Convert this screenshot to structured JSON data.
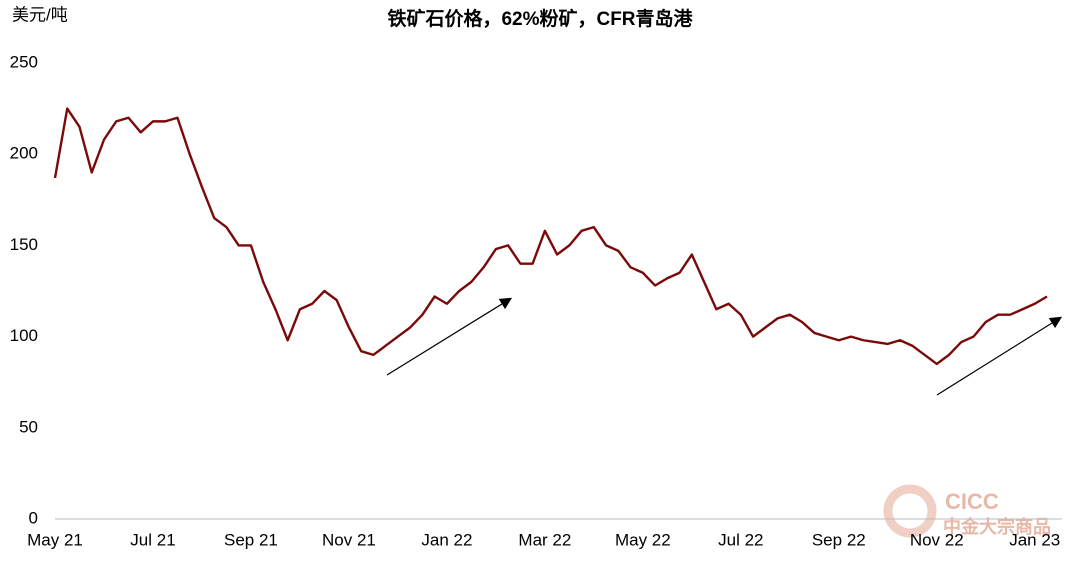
{
  "chart_data": {
    "type": "line",
    "title": "铁矿石价格，62%粉矿，CFR青岛港",
    "y_label": "美元/吨",
    "watermark": [
      "CICC",
      "中金大宗商品"
    ],
    "categories": [
      "May 21",
      null,
      null,
      null,
      null,
      null,
      null,
      null,
      "Jul 21",
      null,
      null,
      null,
      null,
      null,
      null,
      null,
      "Sep 21",
      null,
      null,
      null,
      null,
      null,
      null,
      null,
      "Nov 21",
      null,
      null,
      null,
      null,
      null,
      null,
      null,
      "Jan 22",
      null,
      null,
      null,
      null,
      null,
      null,
      null,
      "Mar 22",
      null,
      null,
      null,
      null,
      null,
      null,
      null,
      "May 22",
      null,
      null,
      null,
      null,
      null,
      null,
      null,
      "Jul 22",
      null,
      null,
      null,
      null,
      null,
      null,
      null,
      "Sep 22",
      null,
      null,
      null,
      null,
      null,
      null,
      null,
      "Nov 22",
      null,
      null,
      null,
      null,
      null,
      null,
      null,
      "Jan 23",
      null
    ],
    "series": [
      {
        "color": "#7a0a0a",
        "values": [
          187,
          225,
          215,
          190,
          208,
          218,
          220,
          212,
          218,
          218,
          220,
          200,
          182,
          165,
          160,
          150,
          150,
          130,
          115,
          98,
          115,
          118,
          125,
          120,
          105,
          92,
          90,
          95,
          100,
          105,
          112,
          122,
          118,
          125,
          130,
          138,
          148,
          150,
          140,
          140,
          158,
          145,
          150,
          158,
          160,
          150,
          147,
          138,
          135,
          128,
          132,
          135,
          145,
          130,
          115,
          118,
          112,
          100,
          105,
          110,
          112,
          108,
          102,
          100,
          98,
          100,
          98,
          97,
          96,
          98,
          95,
          90,
          85,
          90,
          97,
          100,
          108,
          112,
          112,
          115,
          118,
          122
        ]
      }
    ],
    "ylim": [
      0,
      250
    ],
    "yticks": [
      0,
      50,
      100,
      150,
      200,
      250
    ],
    "grid": false
  }
}
